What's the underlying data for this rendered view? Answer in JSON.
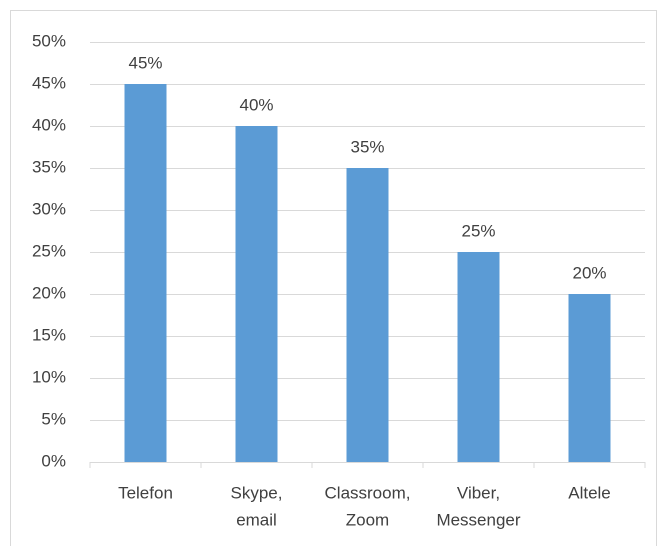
{
  "chart_data": {
    "type": "bar",
    "categories": [
      [
        "Telefon"
      ],
      [
        "Skype,",
        "email"
      ],
      [
        "Classroom,",
        "Zoom"
      ],
      [
        "Viber,",
        "Messenger"
      ],
      [
        "Altele"
      ]
    ],
    "values": [
      45,
      40,
      35,
      25,
      20
    ],
    "value_labels": [
      "45%",
      "40%",
      "35%",
      "25%",
      "20%"
    ],
    "color": "#5b9bd5",
    "ylim": [
      0,
      50
    ],
    "yticks": [
      {
        "value": 0,
        "label": "0%"
      },
      {
        "value": 5,
        "label": "5%"
      },
      {
        "value": 10,
        "label": "10%"
      },
      {
        "value": 15,
        "label": "15%"
      },
      {
        "value": 20,
        "label": "20%"
      },
      {
        "value": 25,
        "label": "25%"
      },
      {
        "value": 30,
        "label": "30%"
      },
      {
        "value": 35,
        "label": "35%"
      },
      {
        "value": 40,
        "label": "40%"
      },
      {
        "value": 45,
        "label": "45%"
      },
      {
        "value": 50,
        "label": "50%"
      }
    ],
    "grid": true
  }
}
